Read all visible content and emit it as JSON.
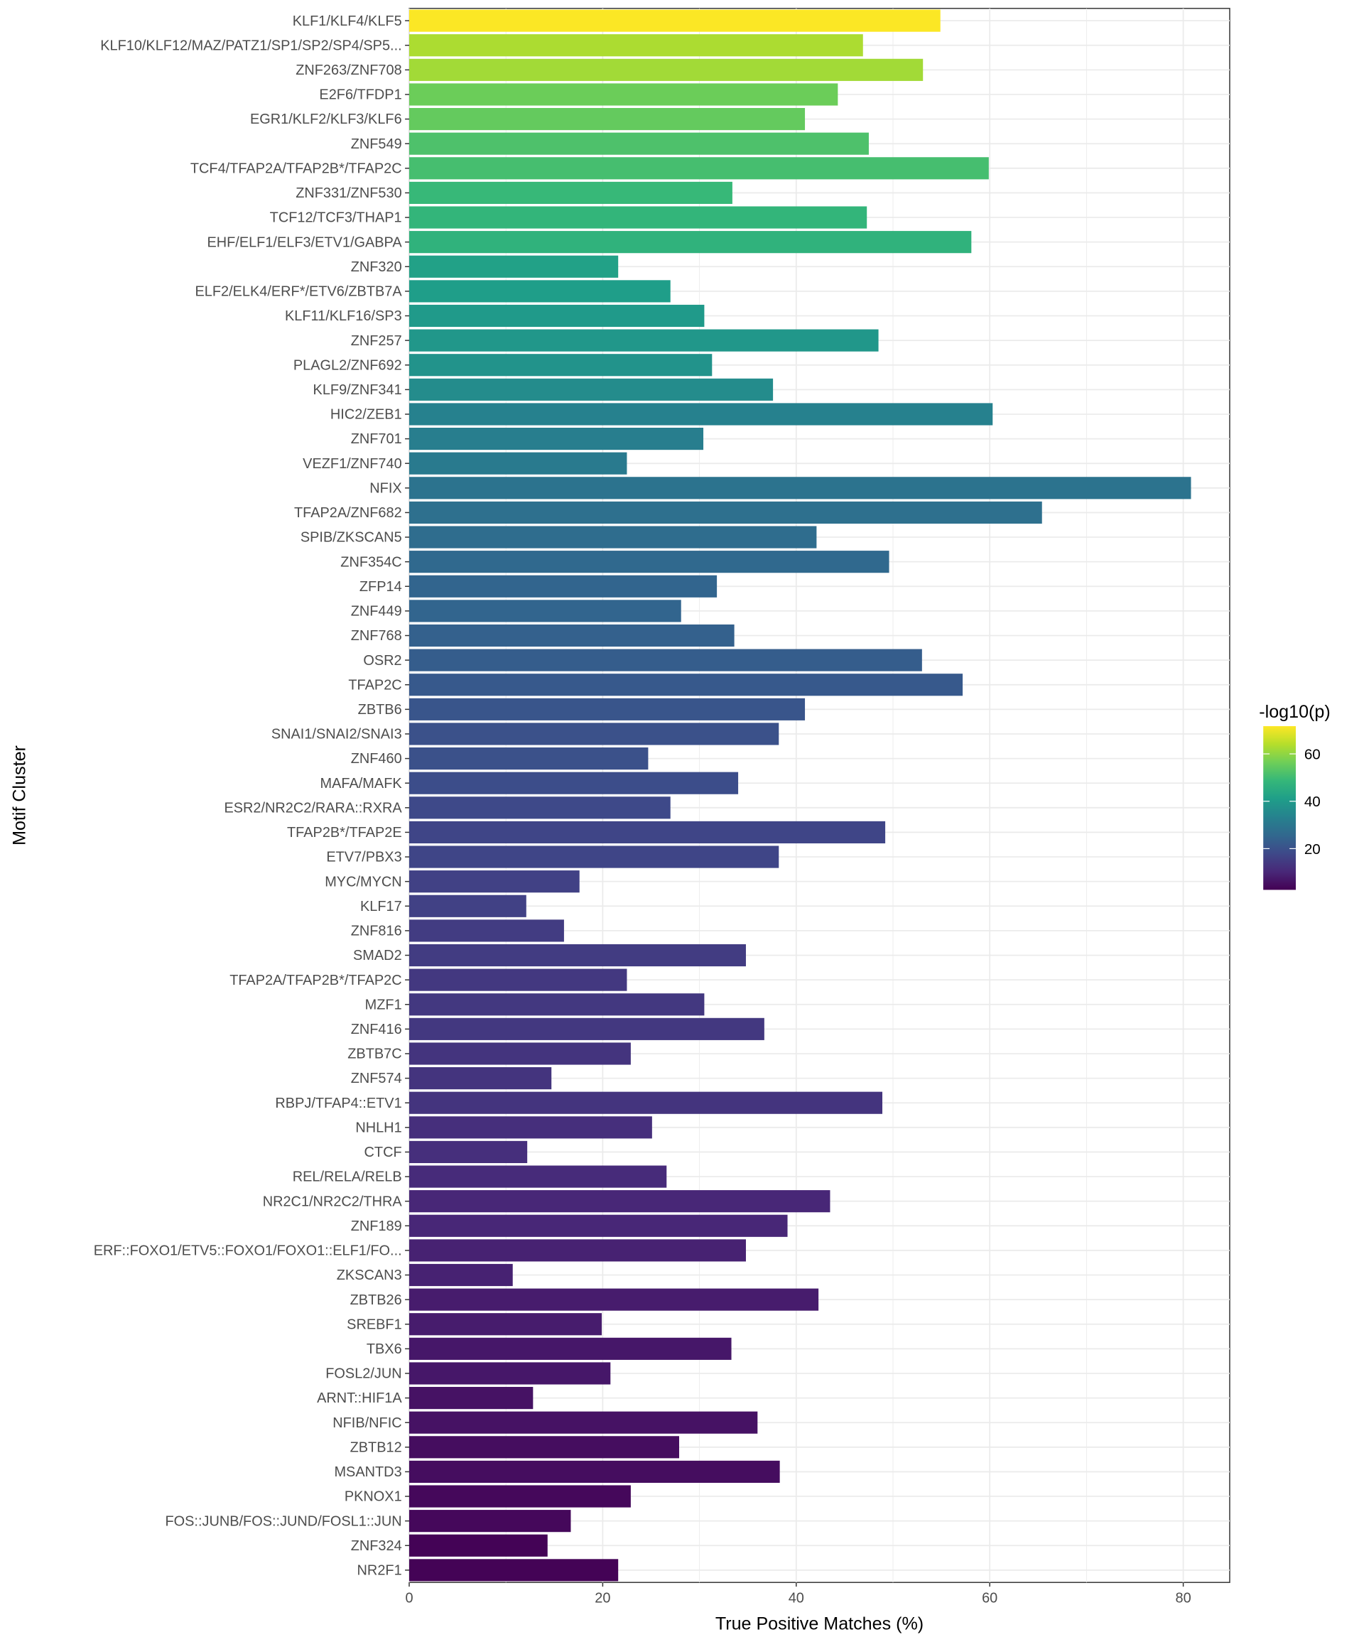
{
  "chart_data": {
    "type": "bar",
    "orientation": "horizontal",
    "xlabel": "True Positive Matches (%)",
    "ylabel": "Motif Cluster",
    "xlim": [
      0,
      84.8
    ],
    "xticks": [
      0,
      20,
      40,
      60,
      80
    ],
    "grid": true,
    "legend": {
      "title": "-log10(p)",
      "position": "right",
      "range": [
        2.6,
        71.7
      ],
      "ticks": [
        20,
        40,
        60
      ],
      "colormap": "viridis"
    },
    "categories": [
      "KLF1/KLF4/KLF5",
      "KLF10/KLF12/MAZ/PATZ1/SP1/SP2/SP4/SP5...",
      "ZNF263/ZNF708",
      "E2F6/TFDP1",
      "EGR1/KLF2/KLF3/KLF6",
      "ZNF549",
      "TCF4/TFAP2A/TFAP2B*/TFAP2C",
      "ZNF331/ZNF530",
      "TCF12/TCF3/THAP1",
      "EHF/ELF1/ELF3/ETV1/GABPA",
      "ZNF320",
      "ELF2/ELK4/ERF*/ETV6/ZBTB7A",
      "KLF11/KLF16/SP3",
      "ZNF257",
      "PLAGL2/ZNF692",
      "KLF9/ZNF341",
      "HIC2/ZEB1",
      "ZNF701",
      "VEZF1/ZNF740",
      "NFIX",
      "TFAP2A/ZNF682",
      "SPIB/ZKSCAN5",
      "ZNF354C",
      "ZFP14",
      "ZNF449",
      "ZNF768",
      "OSR2",
      "TFAP2C",
      "ZBTB6",
      "SNAI1/SNAI2/SNAI3",
      "ZNF460",
      "MAFA/MAFK",
      "ESR2/NR2C2/RARA::RXRA",
      "TFAP2B*/TFAP2E",
      "ETV7/PBX3",
      "MYC/MYCN",
      "KLF17",
      "ZNF816",
      "SMAD2",
      "TFAP2A/TFAP2B*/TFAP2C",
      "MZF1",
      "ZNF416",
      "ZBTB7C",
      "ZNF574",
      "RBPJ/TFAP4::ETV1",
      "NHLH1",
      "CTCF",
      "REL/RELA/RELB",
      "NR2C1/NR2C2/THRA",
      "ZNF189",
      "ERF::FOXO1/ETV5::FOXO1/FOXO1::ELF1/FO...",
      "ZKSCAN3",
      "ZBTB26",
      "SREBF1",
      "TBX6",
      "FOSL2/JUN",
      "ARNT::HIF1A",
      "NFIB/NFIC",
      "ZBTB12",
      "MSANTD3",
      "PKNOX1",
      "FOS::JUNB/FOS::JUND/FOSL1::JUN",
      "ZNF324",
      "NR2F1"
    ],
    "values": [
      54.9,
      46.9,
      53.1,
      44.3,
      40.9,
      47.5,
      59.9,
      33.4,
      47.3,
      58.1,
      21.6,
      27.0,
      30.5,
      48.5,
      31.3,
      37.6,
      60.3,
      30.4,
      22.5,
      80.8,
      65.4,
      42.1,
      49.6,
      31.8,
      28.1,
      33.6,
      53.0,
      57.2,
      40.9,
      38.2,
      24.7,
      34.0,
      27.0,
      49.2,
      38.2,
      17.6,
      12.1,
      16.0,
      34.8,
      22.5,
      30.5,
      36.7,
      22.9,
      14.7,
      48.9,
      25.1,
      12.2,
      26.6,
      43.5,
      39.1,
      34.8,
      10.7,
      42.3,
      19.9,
      33.3,
      20.8,
      12.8,
      36.0,
      27.9,
      38.3,
      22.9,
      16.7,
      14.3,
      21.6
    ],
    "color_values": [
      71.5,
      63,
      62,
      56,
      55,
      52,
      51,
      49,
      48,
      47,
      42,
      41,
      40,
      39,
      38,
      36,
      33,
      32,
      31,
      29,
      28,
      27,
      26,
      25,
      25,
      24,
      23,
      22,
      21,
      20,
      20,
      19,
      18,
      17,
      17,
      16,
      16,
      15,
      15,
      14,
      14,
      14,
      13,
      13,
      13,
      12,
      12,
      11,
      10,
      10,
      9,
      9,
      8,
      8,
      7,
      7,
      6,
      6,
      5,
      5,
      4,
      4,
      3,
      3
    ]
  }
}
